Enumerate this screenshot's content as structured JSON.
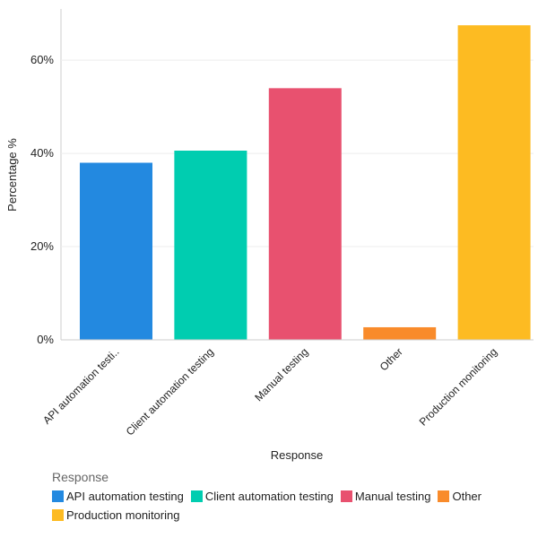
{
  "chart_data": {
    "type": "bar",
    "categories": [
      "API automation testing",
      "Client automation testing",
      "Manual testing",
      "Other",
      "Production monitoring"
    ],
    "tick_labels": [
      "API automation testi..",
      "Client automation testing",
      "Manual testing",
      "Other",
      "Production monitoring"
    ],
    "values": [
      38,
      40.6,
      54,
      2.7,
      67.5
    ],
    "colors": [
      "#2389e0",
      "#00cdb0",
      "#e8516f",
      "#f98b2b",
      "#fdbb22"
    ],
    "xlabel": "Response",
    "ylabel": "Percentage %",
    "ylim": [
      0,
      71
    ],
    "yticks": [
      0,
      20,
      40,
      60
    ],
    "ytick_labels": [
      "0%",
      "20%",
      "40%",
      "60%"
    ],
    "grid": true,
    "legend_title": "Response",
    "legend_position": "bottom"
  }
}
